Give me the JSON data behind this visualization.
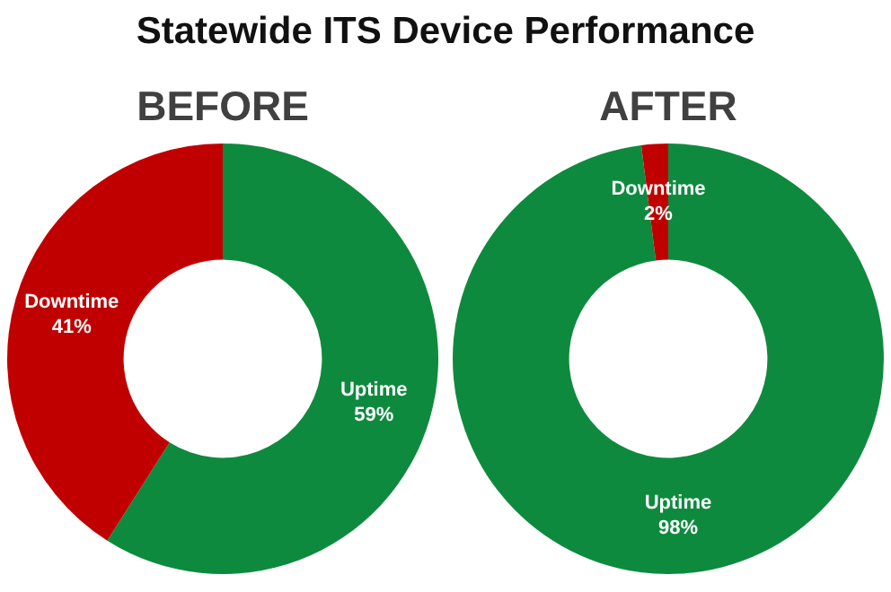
{
  "chart_data": [
    {
      "type": "donut",
      "title": "Statewide ITS Device Performance",
      "subtitle": "BEFORE",
      "categories": [
        "Uptime",
        "Downtime"
      ],
      "values": [
        59,
        41
      ],
      "colors": [
        "#0e8a3e",
        "#c00000"
      ],
      "value_labels": [
        "59%",
        "41%"
      ]
    },
    {
      "type": "donut",
      "subtitle": "AFTER",
      "categories": [
        "Uptime",
        "Downtime"
      ],
      "values": [
        98,
        2
      ],
      "colors": [
        "#0e8a3e",
        "#c00000"
      ],
      "value_labels": [
        "98%",
        "2%"
      ]
    }
  ]
}
